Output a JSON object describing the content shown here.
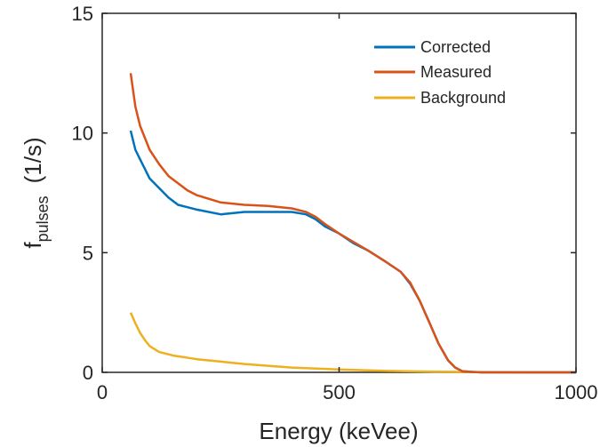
{
  "chart_data": {
    "type": "line",
    "title": "",
    "xlabel": "Energy (keVee)",
    "ylabel": {
      "main": "f",
      "subscript": "pulses",
      "unit": "(1/s)"
    },
    "xlim": [
      0,
      1000
    ],
    "ylim": [
      0,
      15
    ],
    "xticks": [
      0,
      500,
      1000
    ],
    "xtick_labels": [
      "0",
      "500",
      "1000"
    ],
    "yticks": [
      0,
      5,
      10,
      15
    ],
    "ytick_labels": [
      "0",
      "5",
      "10",
      "15"
    ],
    "grid": false,
    "legend_position": "top-right",
    "series": [
      {
        "name": "Corrected",
        "color": "#0072BD",
        "x": [
          60,
          70,
          80,
          90,
          100,
          120,
          140,
          160,
          180,
          200,
          250,
          300,
          350,
          400,
          430,
          450,
          470,
          500,
          530,
          560,
          600,
          630,
          650,
          670,
          690,
          710,
          730,
          745,
          760,
          780,
          800,
          850,
          900,
          950,
          1000
        ],
        "y": [
          10.1,
          9.3,
          8.9,
          8.5,
          8.1,
          7.7,
          7.3,
          7.0,
          6.9,
          6.8,
          6.6,
          6.7,
          6.7,
          6.7,
          6.6,
          6.4,
          6.1,
          5.8,
          5.4,
          5.1,
          4.6,
          4.2,
          3.7,
          3.0,
          2.1,
          1.2,
          0.5,
          0.2,
          0.05,
          0.02,
          0.0,
          0.0,
          0.0,
          0.0,
          0.0
        ]
      },
      {
        "name": "Measured",
        "color": "#D95319",
        "x": [
          60,
          70,
          80,
          90,
          100,
          120,
          140,
          160,
          180,
          200,
          250,
          300,
          350,
          400,
          430,
          450,
          470,
          500,
          530,
          560,
          600,
          630,
          650,
          670,
          690,
          710,
          730,
          745,
          760,
          780,
          800,
          850,
          900,
          950,
          1000
        ],
        "y": [
          12.5,
          11.1,
          10.3,
          9.8,
          9.3,
          8.7,
          8.2,
          7.9,
          7.6,
          7.4,
          7.1,
          7.0,
          6.95,
          6.85,
          6.7,
          6.5,
          6.2,
          5.8,
          5.45,
          5.1,
          4.6,
          4.2,
          3.75,
          3.0,
          2.1,
          1.2,
          0.5,
          0.2,
          0.05,
          0.02,
          0.0,
          0.0,
          0.0,
          0.0,
          0.0
        ]
      },
      {
        "name": "Background",
        "color": "#EDB120",
        "x": [
          60,
          70,
          80,
          90,
          100,
          120,
          150,
          200,
          250,
          300,
          400,
          500,
          600,
          700,
          800,
          900,
          1000
        ],
        "y": [
          2.5,
          2.05,
          1.65,
          1.35,
          1.1,
          0.85,
          0.7,
          0.55,
          0.45,
          0.35,
          0.2,
          0.12,
          0.06,
          0.03,
          0.01,
          0.0,
          0.0
        ]
      }
    ]
  }
}
